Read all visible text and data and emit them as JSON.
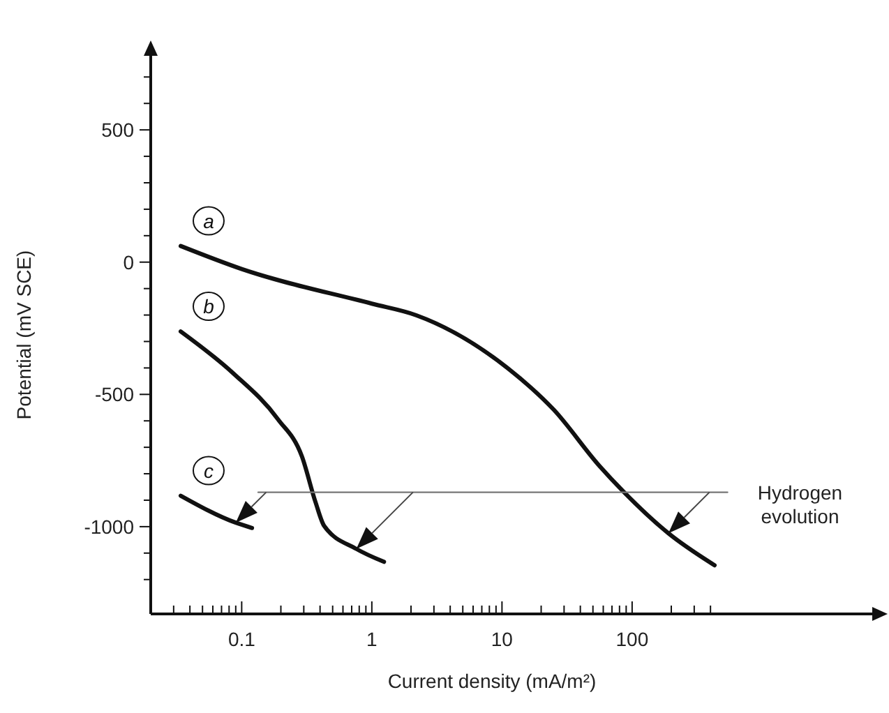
{
  "chart_data": {
    "type": "line",
    "xlabel": "Current density (mA/m²)",
    "ylabel": "Potential (mV SCE)",
    "log": "x",
    "grid": false,
    "marker": "none",
    "line_style": "solid",
    "xlim": [
      0.02,
      7000
    ],
    "ylim": [
      -1330,
      780
    ],
    "xticks": [
      {
        "value": 0.03,
        "label": null
      },
      {
        "value": 0.04,
        "label": null
      },
      {
        "value": 0.05,
        "label": null
      },
      {
        "value": 0.06,
        "label": null
      },
      {
        "value": 0.07,
        "label": null
      },
      {
        "value": 0.08,
        "label": null
      },
      {
        "value": 0.09,
        "label": null
      },
      0.1,
      {
        "value": 0.2,
        "label": null
      },
      {
        "value": 0.3,
        "label": null
      },
      {
        "value": 0.4,
        "label": null
      },
      {
        "value": 0.5,
        "label": null
      },
      {
        "value": 0.6,
        "label": null
      },
      {
        "value": 0.7,
        "label": null
      },
      {
        "value": 0.8,
        "label": null
      },
      {
        "value": 0.9,
        "label": null
      },
      1,
      {
        "value": 2,
        "label": null
      },
      {
        "value": 3,
        "label": null
      },
      {
        "value": 4,
        "label": null
      },
      {
        "value": 5,
        "label": null
      },
      {
        "value": 6,
        "label": null
      },
      {
        "value": 7,
        "label": null
      },
      {
        "value": 8,
        "label": null
      },
      {
        "value": 9,
        "label": null
      },
      10,
      {
        "value": 20,
        "label": null
      },
      {
        "value": 30,
        "label": null
      },
      {
        "value": 40,
        "label": null
      },
      {
        "value": 50,
        "label": null
      },
      {
        "value": 60,
        "label": null
      },
      {
        "value": 70,
        "label": null
      },
      {
        "value": 80,
        "label": null
      },
      {
        "value": 90,
        "label": null
      },
      100,
      {
        "value": 200,
        "label": null
      },
      {
        "value": 300,
        "label": null
      },
      {
        "value": 400,
        "label": null
      }
    ],
    "yticks": [
      {
        "value": 700,
        "label": null
      },
      {
        "value": 600,
        "label": null
      },
      500,
      {
        "value": 400,
        "label": null
      },
      {
        "value": 300,
        "label": null
      },
      {
        "value": 200,
        "label": null
      },
      {
        "value": 100,
        "label": null
      },
      0,
      {
        "value": -100,
        "label": null
      },
      {
        "value": -200,
        "label": null
      },
      {
        "value": -300,
        "label": null
      },
      {
        "value": -400,
        "label": null
      },
      -500,
      {
        "value": -600,
        "label": null
      },
      {
        "value": -700,
        "label": null
      },
      {
        "value": -800,
        "label": null
      },
      {
        "value": -900,
        "label": null
      },
      -1000,
      {
        "value": -1100,
        "label": null
      },
      {
        "value": -1200,
        "label": null
      }
    ],
    "series": [
      {
        "name": "a",
        "color": "#111111",
        "x": [
          0.034,
          0.1,
          1,
          2.2,
          11,
          25,
          56,
          86,
          190,
          430
        ],
        "values": [
          61,
          -26,
          -157,
          -201,
          -400,
          -558,
          -770,
          -868,
          -1025,
          -1146
        ]
      },
      {
        "name": "b",
        "color": "#111111",
        "x": [
          0.034,
          0.086,
          0.19,
          0.29,
          0.37,
          0.43,
          0.76,
          1.24
        ],
        "values": [
          -262,
          -420,
          -594,
          -734,
          -909,
          -997,
          -1084,
          -1133
        ]
      },
      {
        "name": "c",
        "color": "#111111",
        "x": [
          0.034,
          0.09,
          0.12
        ],
        "values": [
          -883,
          -985,
          -1005
        ]
      },
      {
        "type": "line",
        "color": "#777777",
        "x": [
          0.134,
          540
        ],
        "values": [
          -870,
          -870
        ]
      }
    ],
    "annotations": [
      "Hydrogen evolution"
    ]
  }
}
